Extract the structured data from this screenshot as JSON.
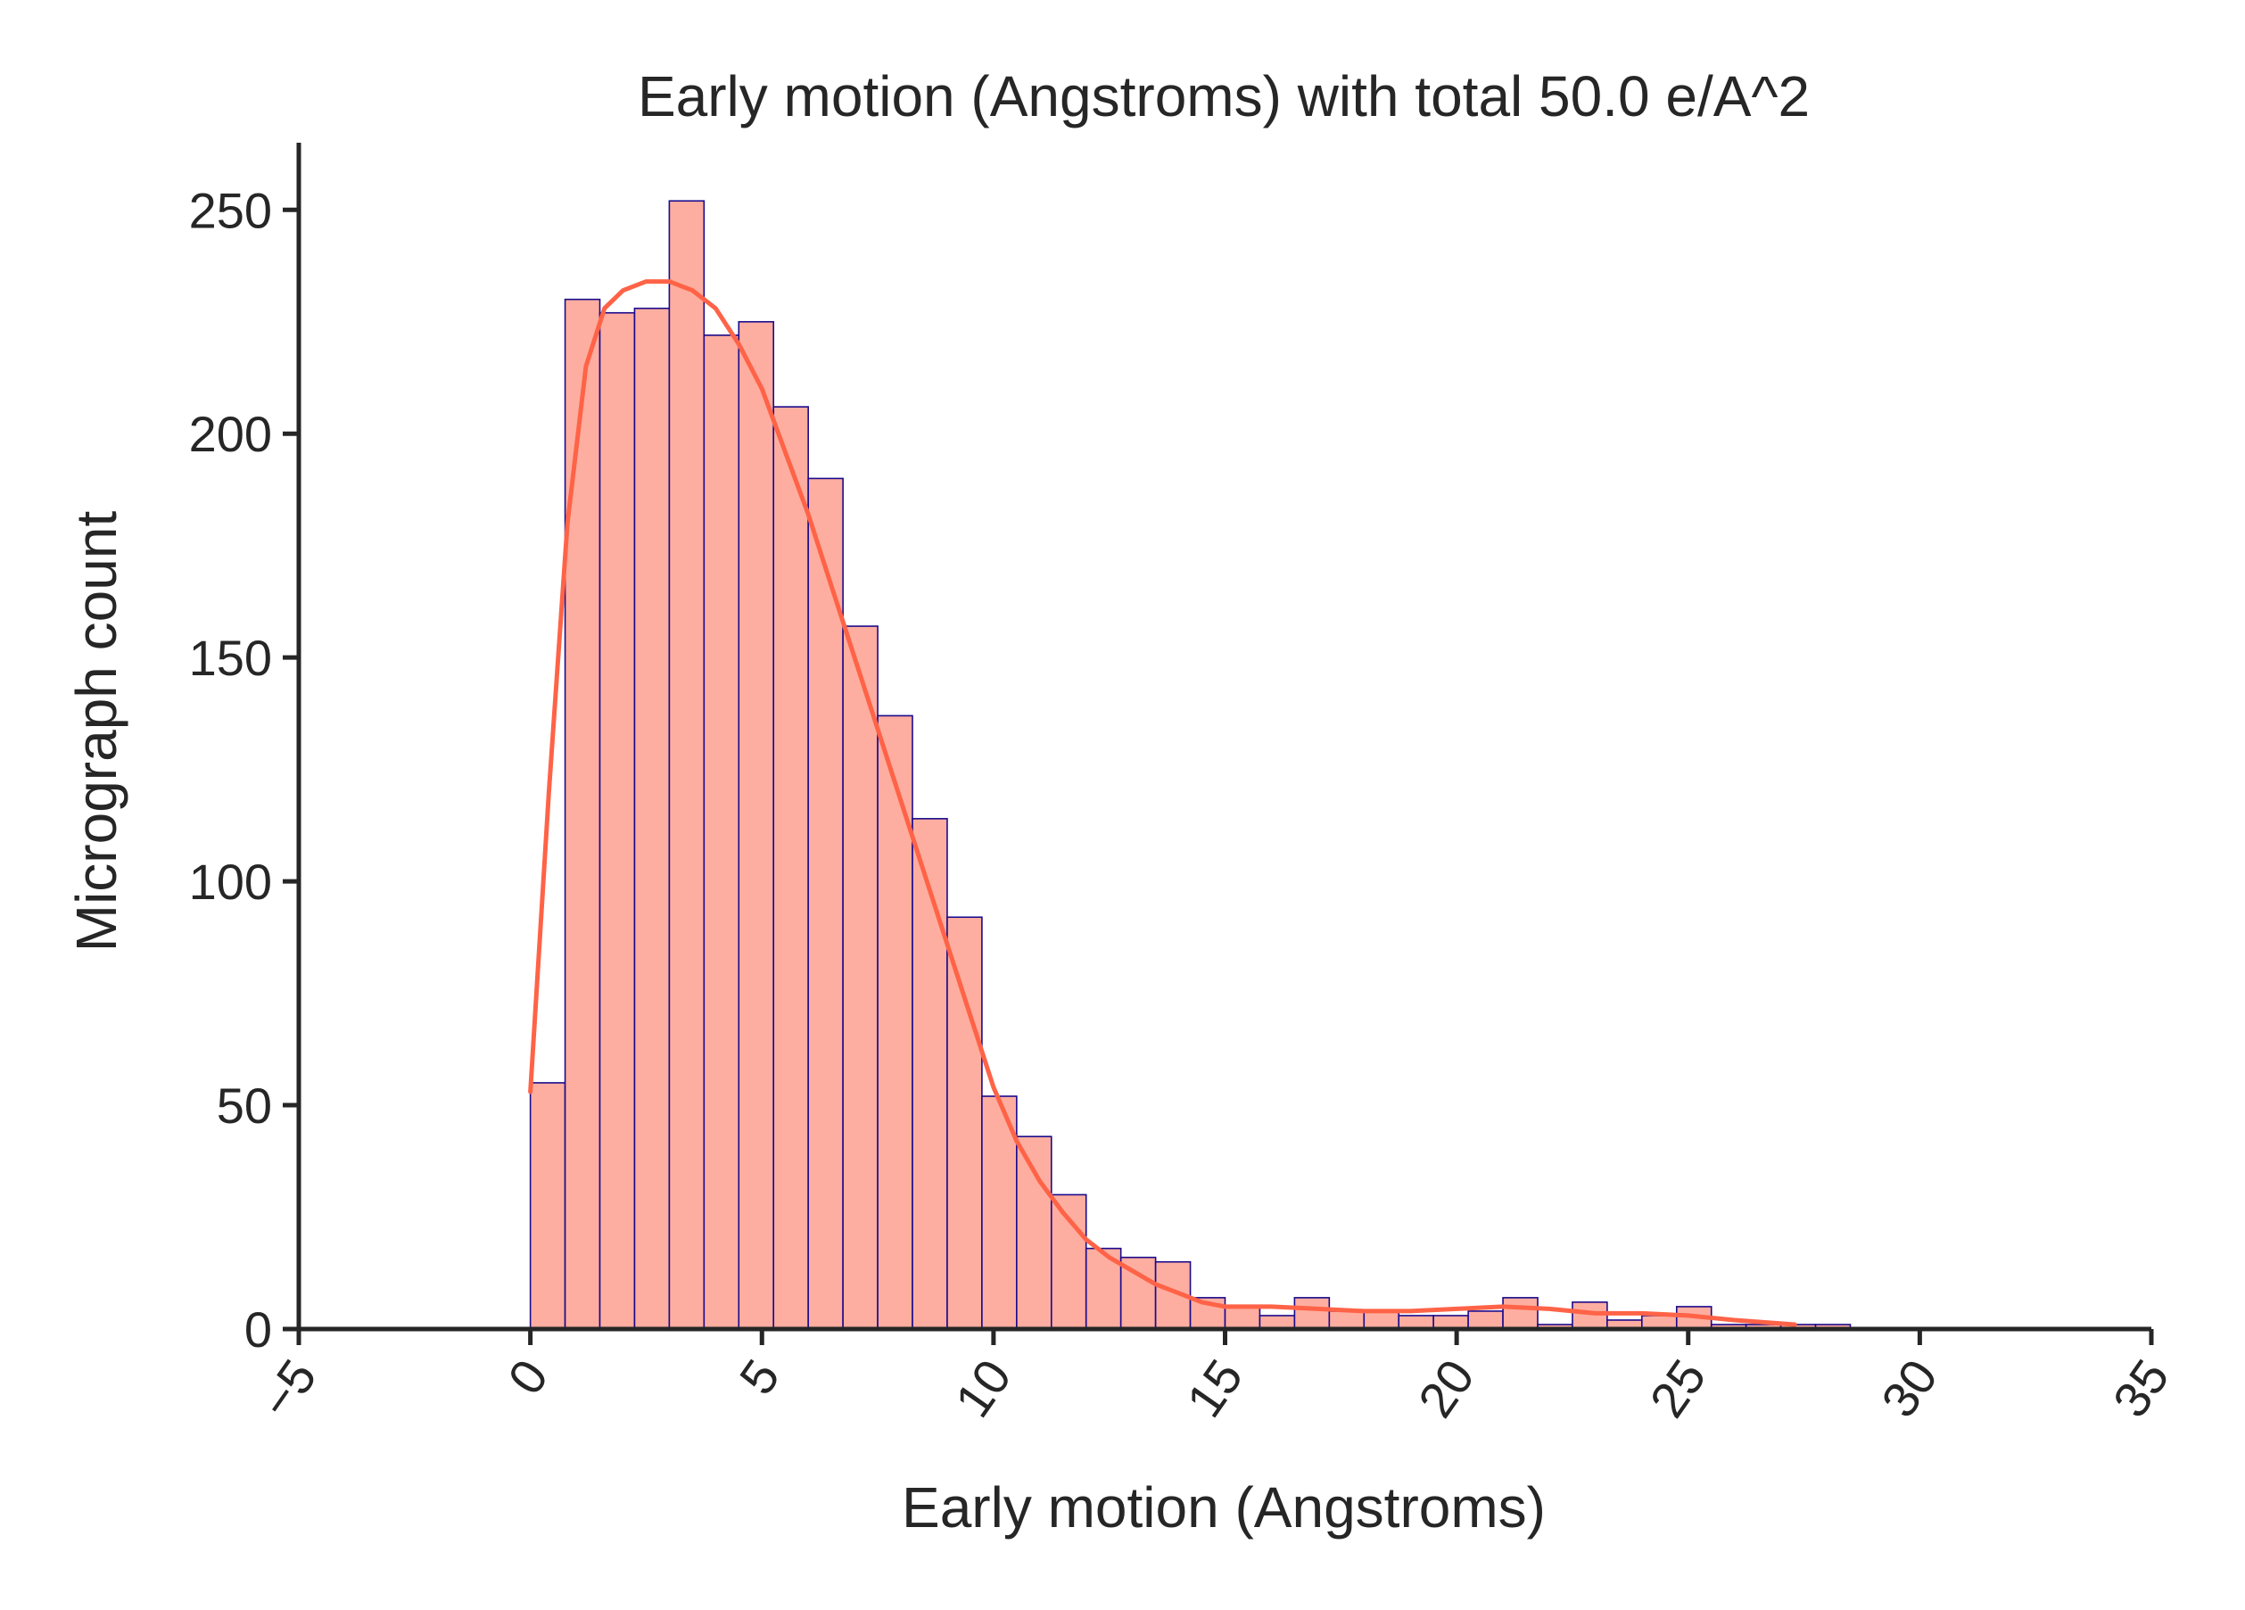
{
  "chart_data": {
    "type": "bar",
    "title": "Early motion (Angstroms) with total 50.0 e/A^2",
    "xlabel": "Early motion (Angstroms)",
    "ylabel": "Micrograph count",
    "xlim": [
      -5,
      35
    ],
    "ylim": [
      0,
      265
    ],
    "xticks": [
      -5,
      0,
      5,
      10,
      15,
      20,
      25,
      30,
      35
    ],
    "xtick_labels": [
      "−5",
      "0",
      "5",
      "10",
      "15",
      "20",
      "25",
      "30",
      "35"
    ],
    "yticks": [
      0,
      50,
      100,
      150,
      200,
      250
    ],
    "ytick_labels": [
      "0",
      "50",
      "100",
      "150",
      "200",
      "250"
    ],
    "grid": false,
    "bar_color": "#fdaea0",
    "bar_edge_color": "#1a0a8c",
    "kde_color": "#ff6347",
    "bin_start": 0,
    "bin_width": 0.75,
    "values": [
      55,
      230,
      227,
      228,
      252,
      222,
      225,
      206,
      190,
      157,
      137,
      114,
      92,
      52,
      43,
      30,
      18,
      16,
      15,
      7,
      5,
      3,
      7,
      4,
      4,
      3,
      3,
      4,
      7,
      1,
      6,
      2,
      3,
      5,
      1,
      1,
      1,
      1
    ],
    "kde": {
      "x": [
        0,
        0.4,
        0.8,
        1.2,
        1.6,
        2.0,
        2.5,
        3.0,
        3.5,
        4.0,
        4.5,
        5.0,
        5.5,
        6.0,
        6.5,
        7.0,
        7.5,
        8.0,
        8.5,
        9.0,
        9.5,
        10.0,
        10.5,
        11.0,
        11.5,
        12.0,
        12.5,
        13.0,
        13.5,
        14.0,
        14.5,
        15.0,
        15.5,
        16.0,
        17.0,
        18.0,
        19.0,
        20.0,
        21.0,
        22.0,
        23.0,
        24.0,
        25.0,
        26.0,
        27.3
      ],
      "y": [
        53,
        120,
        180,
        215,
        228,
        232,
        234,
        234,
        232,
        228,
        220,
        210,
        196,
        182,
        166,
        150,
        134,
        118,
        102,
        86,
        70,
        54,
        42,
        33,
        26,
        20,
        16,
        13,
        10,
        8,
        6,
        5,
        5,
        5,
        4.5,
        4,
        4,
        4.5,
        5,
        4.5,
        3.5,
        3.5,
        3,
        2,
        1
      ]
    }
  }
}
